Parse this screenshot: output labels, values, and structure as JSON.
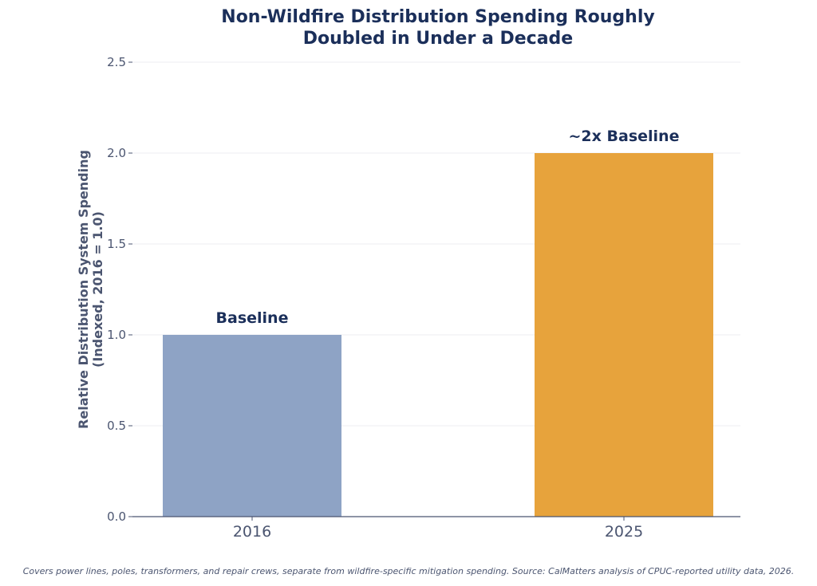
{
  "chart_data": {
    "type": "bar",
    "title_lines": [
      "Non-Wildfire Distribution Spending Roughly",
      "Doubled in Under a Decade"
    ],
    "ylabel_lines": [
      "Relative Distribution System Spending",
      "(Indexed, 2016 = 1.0)"
    ],
    "xlabel": "",
    "categories": [
      "2016",
      "2025"
    ],
    "values": [
      1.0,
      2.0
    ],
    "bar_labels": [
      "Baseline",
      "~2x Baseline"
    ],
    "bar_colors": [
      "#8ea3c5",
      "#e7a33c"
    ],
    "ylim": [
      0,
      2.5
    ],
    "yticks": [
      0.0,
      0.5,
      1.0,
      1.5,
      2.0,
      2.5
    ],
    "ytick_labels": [
      "0.0",
      "0.5",
      "1.0",
      "1.5",
      "2.0",
      "2.5"
    ],
    "grid": true,
    "legend": "none"
  },
  "footnote": "Covers power lines, poles, transformers, and repair crews, separate from wildfire-specific mitigation spending. Source: CalMatters analysis of CPUC-reported utility data, 2026.",
  "colors": {
    "title": "#1b2f5a",
    "axis_text": "#4b5570",
    "grid": "#eceef2",
    "axis_line": "#4b5570"
  }
}
